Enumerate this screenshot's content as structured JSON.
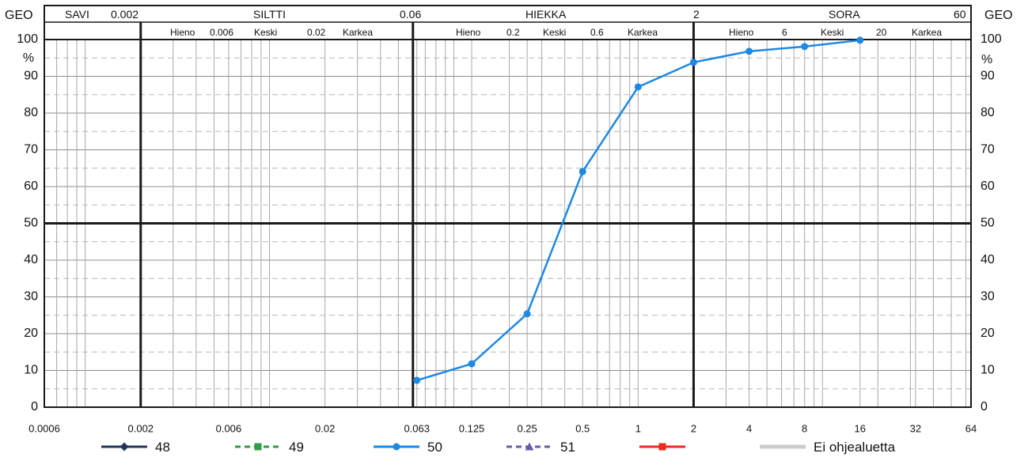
{
  "header": {
    "geo_left": "GEO",
    "geo_right": "GEO",
    "row1": [
      "SAVI",
      "0.002",
      "SILTTI",
      "0.06",
      "HIEKKA",
      "2",
      "SORA",
      "60"
    ],
    "row2": [
      "Hieno",
      "0.006",
      "Keski",
      "0.02",
      "Karkea",
      "Hieno",
      "0.2",
      "Keski",
      "0.6",
      "Karkea",
      "Hieno",
      "6",
      "Keski",
      "20",
      "Karkea"
    ]
  },
  "chart_data": {
    "type": "line",
    "xscale": "log",
    "xlim": [
      0.0006,
      64
    ],
    "ylim": [
      0,
      100
    ],
    "xticks": [
      0.0006,
      0.002,
      0.006,
      0.02,
      0.063,
      0.125,
      0.25,
      0.5,
      1,
      2,
      4,
      8,
      16,
      32,
      64
    ],
    "yticks": [
      0,
      10,
      20,
      30,
      40,
      50,
      60,
      70,
      80,
      90,
      100
    ],
    "ylabel": "%",
    "class_boundaries": [
      0.002,
      0.06,
      2
    ],
    "grid": true,
    "legend": "bottom",
    "series": [
      {
        "name": "48",
        "color": "#22365a",
        "marker": "diamond",
        "line_style": "solid",
        "x": [],
        "y": []
      },
      {
        "name": "49",
        "color": "#2f9e44",
        "marker": "square",
        "line_style": "dashed",
        "x": [],
        "y": []
      },
      {
        "name": "50",
        "color": "#1e88e5",
        "marker": "circle",
        "line_style": "solid",
        "x": [
          0.063,
          0.125,
          0.25,
          0.5,
          1,
          2,
          4,
          8,
          16
        ],
        "y": [
          7.3,
          11.8,
          25.4,
          64.1,
          87.1,
          93.8,
          96.8,
          98.1,
          99.8
        ]
      },
      {
        "name": "51",
        "color": "#6b5aa8",
        "marker": "triangle",
        "line_style": "dashed",
        "x": [],
        "y": []
      },
      {
        "color": "#ee2a1f",
        "marker": "square",
        "line_style": "solid",
        "x": [],
        "y": []
      },
      {
        "name": "Ei ohjealuetta",
        "color": "#cccccc",
        "marker": "none",
        "line_style": "solid",
        "x": [],
        "y": []
      }
    ]
  }
}
